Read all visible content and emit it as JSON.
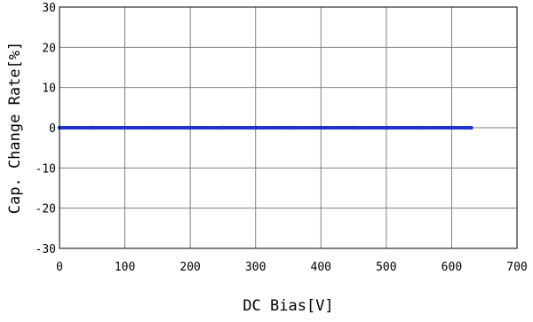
{
  "chart_data": {
    "type": "line",
    "title": "",
    "xlabel": "DC Bias[V]",
    "ylabel": "Cap. Change Rate[%]",
    "xlim": [
      0,
      700
    ],
    "ylim": [
      -30,
      30
    ],
    "x_ticks": [
      0,
      100,
      200,
      300,
      400,
      500,
      600,
      700
    ],
    "y_ticks": [
      30,
      20,
      10,
      0,
      -10,
      -20,
      -30
    ],
    "x_tick_labels": [
      "0",
      "100",
      "200",
      "300",
      "400",
      "500",
      "600",
      "700"
    ],
    "y_tick_labels": [
      "30",
      "20",
      "10",
      "0",
      "-10",
      "-20",
      "-30"
    ],
    "grid": true,
    "series": [
      {
        "color": "#2233cc",
        "x": [
          0,
          50,
          100,
          150,
          200,
          250,
          300,
          350,
          400,
          450,
          500,
          550,
          600,
          630
        ],
        "y": [
          0,
          0,
          0,
          0,
          0,
          0,
          0,
          0,
          0,
          0,
          0,
          0,
          0,
          0
        ]
      }
    ]
  }
}
